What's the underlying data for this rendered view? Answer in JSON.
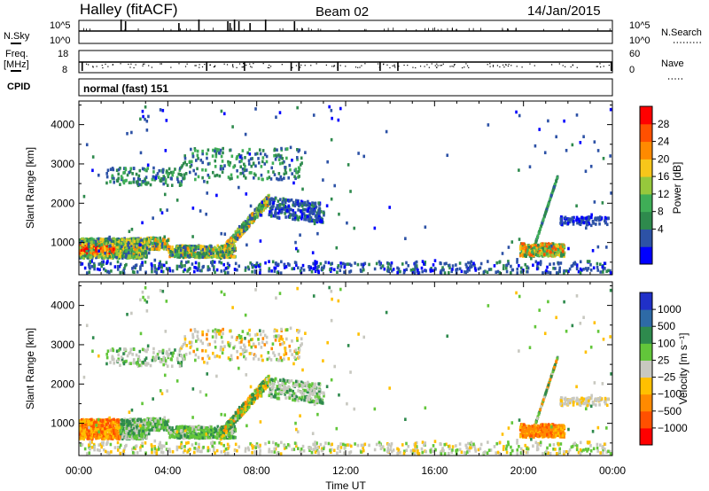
{
  "header": {
    "title": "Halley (fitACF)",
    "beam": "Beam 02",
    "date": "14/Jan/2015"
  },
  "noise_panel": {
    "left_label": "N.Sky",
    "right_label": "N.Search",
    "left_ticks": [
      "10^5",
      "10^0"
    ],
    "right_ticks": [
      "10^5",
      "10^0"
    ]
  },
  "freq_panel": {
    "left_label_line1": "Freq.",
    "left_label_line2": "[MHz]",
    "right_label": "Nave",
    "left_ticks": [
      "18",
      "8"
    ],
    "right_ticks": [
      "60",
      "0"
    ]
  },
  "cpid": {
    "label": "CPID",
    "mode": "normal (fast) 151"
  },
  "time_axis": {
    "label": "Time UT",
    "ticks": [
      "00:00",
      "04:00",
      "08:00",
      "12:00",
      "16:00",
      "20:00",
      "00:00"
    ]
  },
  "chart_data": [
    {
      "type": "heatmap",
      "name": "power",
      "ylabel": "Slant Range [km]",
      "yticks": [
        1000,
        2000,
        3000,
        4000
      ],
      "ylim": [
        180,
        4600
      ],
      "xlim_hours": [
        0,
        24
      ],
      "colorbar_label": "Power [dB]",
      "colorbar_ticks": [
        "28",
        "24",
        "20",
        "16",
        "12",
        "8",
        "4"
      ],
      "colorscale": [
        "#0000ff",
        "#2d52a6",
        "#2e8a4d",
        "#3fae57",
        "#96c83c",
        "#f7c61a",
        "#ff8a00",
        "#ff5000",
        "#ff0000"
      ]
    },
    {
      "type": "heatmap",
      "name": "velocity",
      "ylabel": "Slant Range [km]",
      "yticks": [
        1000,
        2000,
        3000,
        4000
      ],
      "ylim": [
        180,
        4600
      ],
      "xlim_hours": [
        0,
        24
      ],
      "colorbar_label": "Velocity [m s⁻¹]",
      "colorbar_ticks": [
        "1000",
        "500",
        "100",
        "25",
        "−25",
        "−100",
        "−500",
        "−1000"
      ],
      "colorscale": [
        "#2030c8",
        "#2e6aa6",
        "#2e8a4d",
        "#62c63a",
        "#c8c8c0",
        "#ffc000",
        "#ff8a00",
        "#ff5000",
        "#ff0000"
      ]
    }
  ]
}
